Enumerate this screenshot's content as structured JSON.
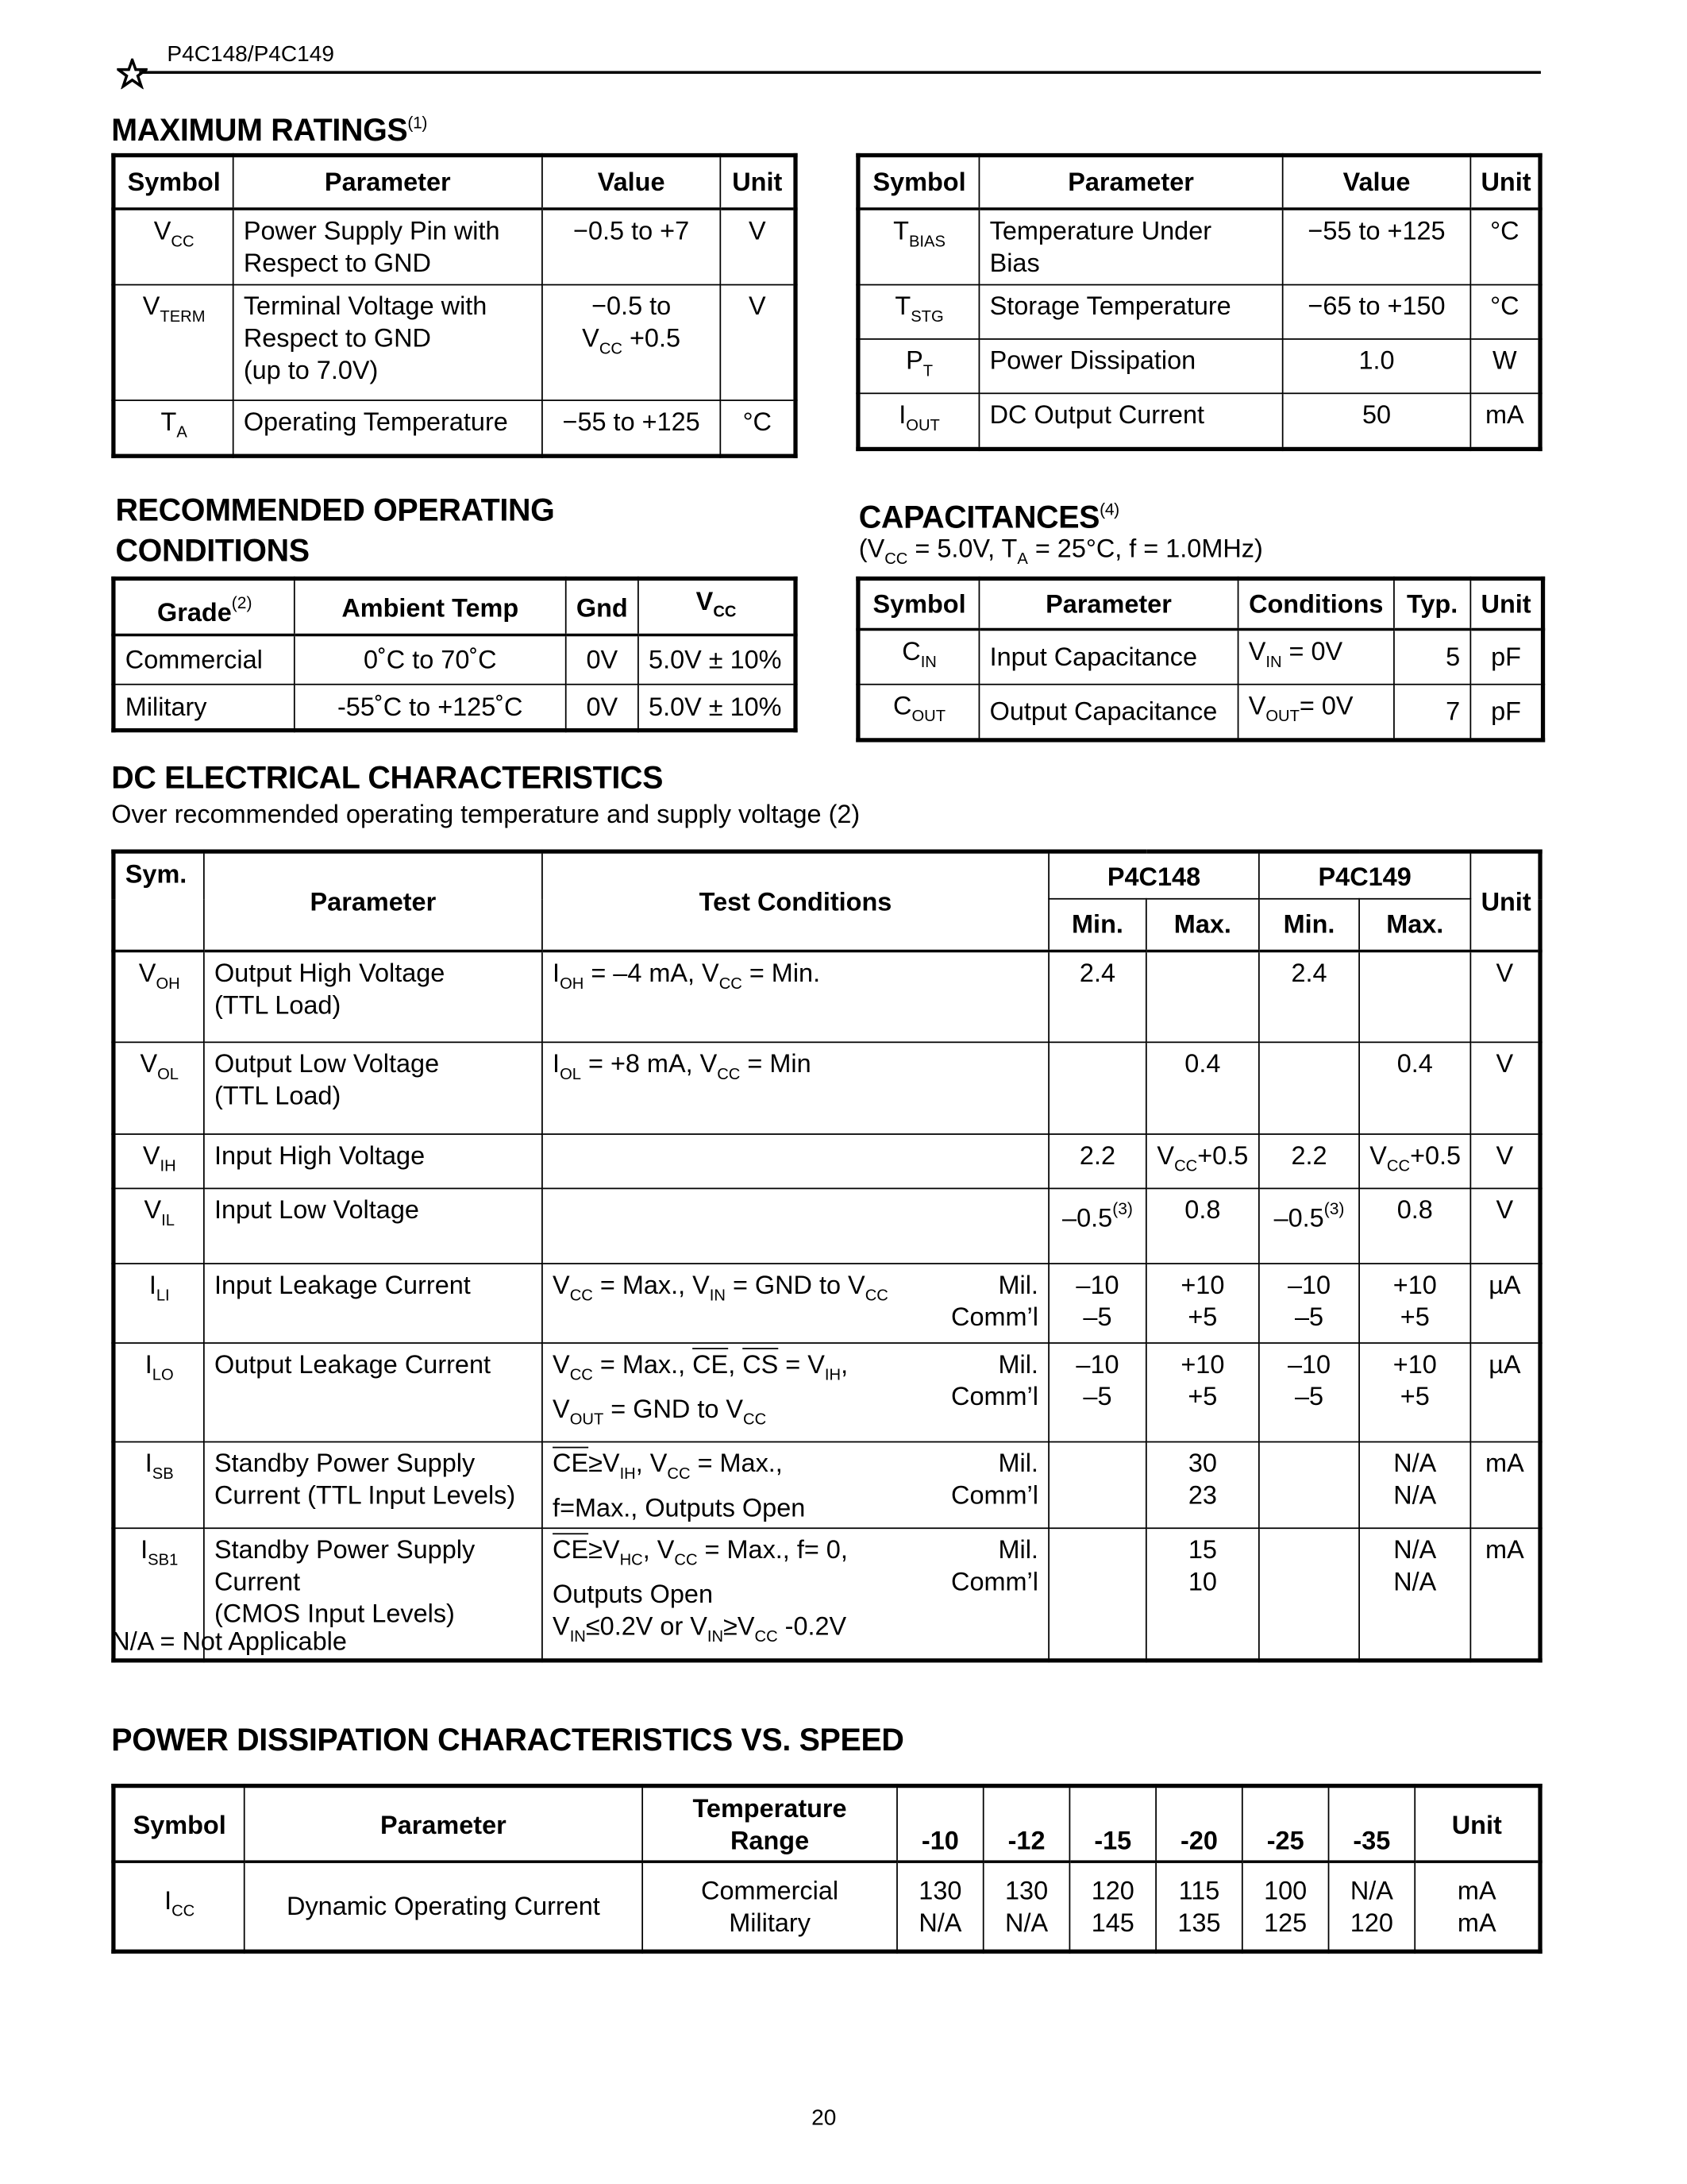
{
  "header": {
    "title": "P4C148/P4C149",
    "logo_icon": "star-icon"
  },
  "max_ratings": {
    "title": "MAXIMUM RATINGS",
    "title_note": "(1)",
    "left": {
      "headers": [
        "Symbol",
        "Parameter",
        "Value",
        "Unit"
      ],
      "rows": [
        [
          [
            "V",
            {
              "sub": "CC"
            }
          ],
          {
            "lines": [
              "Power Supply Pin with",
              "Respect to GND"
            ]
          },
          "−0.5 to +7",
          "V"
        ],
        [
          [
            "V",
            {
              "sub": "TERM"
            }
          ],
          {
            "lines": [
              "Terminal Voltage with",
              "Respect to GND",
              "(up to 7.0V)"
            ]
          },
          {
            "lines": [
              "−0.5 to",
              [
                "V",
                {
                  "sub": "CC"
                },
                " +0.5"
              ]
            ]
          },
          "V"
        ],
        [
          [
            "T",
            {
              "sub": "A"
            }
          ],
          "Operating Temperature",
          "−55 to +125",
          "°C"
        ]
      ]
    },
    "right": {
      "headers": [
        "Symbol",
        "Parameter",
        "Value",
        "Unit"
      ],
      "rows": [
        [
          [
            "T",
            {
              "sub": "BIAS"
            }
          ],
          {
            "lines": [
              "Temperature Under",
              "Bias"
            ]
          },
          "−55 to +125",
          "°C"
        ],
        [
          [
            "T",
            {
              "sub": "STG"
            }
          ],
          "Storage Temperature",
          "−65 to +150",
          "°C"
        ],
        [
          [
            "P",
            {
              "sub": "T"
            }
          ],
          "Power Dissipation",
          "1.0",
          "W"
        ],
        [
          [
            "I",
            {
              "sub": "OUT"
            }
          ],
          "DC Output Current",
          "50",
          "mA"
        ]
      ]
    }
  },
  "recommended": {
    "title_lines": [
      "RECOMMENDED OPERATING",
      "CONDITIONS"
    ],
    "headers": [
      [
        "Grade",
        {
          "sup": "(2)"
        }
      ],
      "Ambient Temp",
      "Gnd",
      [
        "V",
        {
          "sub": "CC"
        }
      ]
    ],
    "rows": [
      [
        "Commercial",
        "0˚C to 70˚C",
        "0V",
        "5.0V ± 10%"
      ],
      [
        "Military",
        "-55˚C to +125˚C",
        "0V",
        "5.0V ± 10%"
      ]
    ]
  },
  "capacitances": {
    "title": "CAPACITANCES",
    "title_note": "(4)",
    "conditions": [
      "(V",
      {
        "sub": "CC"
      },
      " = 5.0V, T",
      {
        "sub": "A"
      },
      " = 25°C, f = 1.0MHz)"
    ],
    "headers": [
      "Symbol",
      "Parameter",
      "Conditions",
      "Typ.",
      "Unit"
    ],
    "rows": [
      [
        [
          "C",
          {
            "sub": "IN"
          }
        ],
        "Input Capacitance",
        [
          "V",
          {
            "sub": "IN"
          },
          " = 0V"
        ],
        "5",
        "pF"
      ],
      [
        [
          "C",
          {
            "sub": "OUT"
          }
        ],
        "Output Capacitance",
        [
          "V",
          {
            "sub": "OUT"
          },
          "= 0V"
        ],
        "7",
        "pF"
      ]
    ]
  },
  "dc": {
    "title": "DC ELECTRICAL CHARACTERISTICS",
    "subtitle": "Over recommended operating temperature and supply voltage (2)",
    "headers": {
      "sym": "Sym.",
      "parameter": "Parameter",
      "test": "Test Conditions",
      "p4c148": "P4C148",
      "p4c149": "P4C149",
      "unit": "Unit",
      "min": "Min.",
      "max": "Max."
    },
    "rows": [
      [
        [
          "V",
          {
            "sub": "OH"
          }
        ],
        {
          "lines": [
            "Output High Voltage",
            "(TTL Load)"
          ]
        },
        [
          "I",
          {
            "sub": "OH"
          },
          " = –4 mA, V",
          {
            "sub": "CC"
          },
          " = Min."
        ],
        "2.4",
        "",
        "2.4",
        "",
        "V"
      ],
      [
        [
          "V",
          {
            "sub": "OL"
          }
        ],
        {
          "lines": [
            "Output Low Voltage",
            "(TTL Load)"
          ]
        },
        [
          "I",
          {
            "sub": "OL"
          },
          " = +8 mA, V",
          {
            "sub": "CC"
          },
          " = Min"
        ],
        "",
        "0.4",
        "",
        "0.4",
        "V"
      ],
      [
        [
          "V",
          {
            "sub": "IH"
          }
        ],
        "Input High Voltage",
        "",
        "2.2",
        [
          "V",
          {
            "sub": "CC"
          },
          "+0.5"
        ],
        "2.2",
        [
          "V",
          {
            "sub": "CC"
          },
          "+0.5"
        ],
        "V"
      ],
      [
        [
          "V",
          {
            "sub": "IL"
          }
        ],
        "Input Low Voltage",
        "",
        [
          "–0.5",
          {
            "sup": "(3)"
          }
        ],
        "0.8",
        [
          "–0.5",
          {
            "sup": "(3)"
          }
        ],
        "0.8",
        "V"
      ],
      [
        [
          "I",
          {
            "sub": "LI"
          }
        ],
        "Input Leakage Current",
        {
          "lines": [
            [
              "V",
              {
                "sub": "CC"
              },
              " = Max., V",
              {
                "sub": "IN"
              },
              " = GND to V",
              {
                "sub": "CC"
              }
            ]
          ],
          "right": [
            "Mil.",
            "Comm’l"
          ]
        },
        {
          "lines": [
            "–10",
            "–5"
          ]
        },
        {
          "lines": [
            "+10",
            "+5"
          ]
        },
        {
          "lines": [
            "–10",
            "–5"
          ]
        },
        {
          "lines": [
            "+10",
            "+5"
          ]
        },
        "µA"
      ],
      [
        [
          "I",
          {
            "sub": "LO"
          }
        ],
        "Output Leakage Current",
        {
          "lines": [
            [
              "V",
              {
                "sub": "CC"
              },
              " = Max., ",
              {
                "ol": "CE"
              },
              ", ",
              {
                "ol": "CS"
              },
              " = V",
              {
                "sub": "IH"
              },
              ","
            ],
            [
              "V",
              {
                "sub": "OUT"
              },
              " = GND to V",
              {
                "sub": "CC"
              }
            ]
          ],
          "right": [
            "Mil.",
            "Comm’l"
          ]
        },
        {
          "lines": [
            "–10",
            "–5"
          ]
        },
        {
          "lines": [
            "+10",
            "+5"
          ]
        },
        {
          "lines": [
            "–10",
            "–5"
          ]
        },
        {
          "lines": [
            "+10",
            "+5"
          ]
        },
        "µA"
      ],
      [
        [
          "I",
          {
            "sub": "SB"
          }
        ],
        {
          "lines": [
            "Standby Power Supply",
            "Current (TTL Input Levels)"
          ]
        },
        {
          "lines": [
            [
              {
                "ol": "CE"
              },
              "≥V",
              {
                "sub": "IH"
              },
              ", V",
              {
                "sub": "CC"
              },
              " = Max.,"
            ],
            "f=Max., Outputs Open"
          ],
          "right": [
            "Mil.",
            "Comm’l"
          ]
        },
        "",
        {
          "lines": [
            "30",
            "23"
          ]
        },
        "",
        {
          "lines": [
            "N/A",
            "N/A"
          ]
        },
        "mA"
      ],
      [
        [
          "I",
          {
            "sub": "SB1"
          }
        ],
        {
          "lines": [
            "Standby Power Supply",
            "Current",
            "(CMOS  Input Levels)"
          ]
        },
        {
          "lines": [
            [
              {
                "ol": "CE"
              },
              "≥V",
              {
                "sub": "HC"
              },
              ", V",
              {
                "sub": "CC"
              },
              " = Max., f= 0,"
            ],
            "Outputs Open",
            [
              "V",
              {
                "sub": "IN"
              },
              "≤0.2V or V",
              {
                "sub": "IN"
              },
              "≥V",
              {
                "sub": "CC"
              },
              " -0.2V"
            ]
          ],
          "right": [
            "Mil.",
            "Comm’l"
          ]
        },
        "",
        {
          "lines": [
            "15",
            "10"
          ]
        },
        "",
        {
          "lines": [
            "N/A",
            "N/A"
          ]
        },
        "mA"
      ]
    ],
    "note": "N/A = Not Applicable"
  },
  "power": {
    "title": "POWER DISSIPATION CHARACTERISTICS VS. SPEED",
    "headers": [
      "Symbol",
      "Parameter",
      {
        "lines": [
          "Temperature",
          "Range"
        ]
      },
      "-10",
      "-12",
      "-15",
      "-20",
      "-25",
      "-35",
      "Unit"
    ],
    "rows": [
      [
        [
          "I",
          {
            "sub": "CC"
          }
        ],
        "Dynamic Operating Current",
        {
          "lines": [
            "Commercial",
            "Military"
          ]
        },
        {
          "lines": [
            "130",
            "N/A"
          ]
        },
        {
          "lines": [
            "130",
            "N/A"
          ]
        },
        {
          "lines": [
            "120",
            "145"
          ]
        },
        {
          "lines": [
            "115",
            "135"
          ]
        },
        {
          "lines": [
            "100",
            "125"
          ]
        },
        {
          "lines": [
            "N/A",
            "120"
          ]
        },
        {
          "lines": [
            "mA",
            "mA"
          ]
        }
      ]
    ]
  },
  "page_number": "20"
}
